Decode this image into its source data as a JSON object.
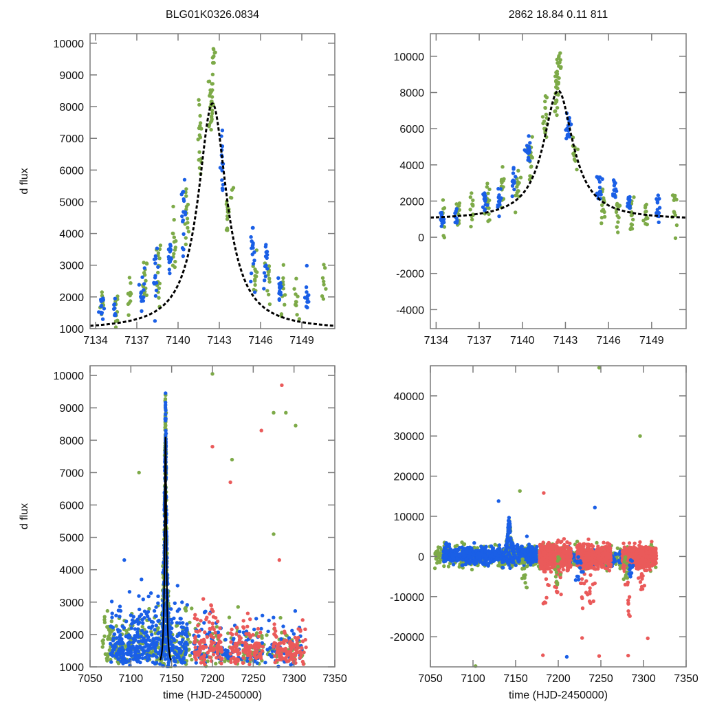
{
  "colors": {
    "ogle_green": "#7daa48",
    "moa_blue": "#1a5fe6",
    "kmt_red": "#ea5a5a",
    "model_line": "#000000",
    "axis": "#7a7a7a"
  },
  "chart_data": [
    {
      "id": "top-left",
      "type": "scatter",
      "title": "BLG01K0326.0834",
      "xlabel": "",
      "ylabel": "d flux",
      "xlim": [
        7133.6,
        7151.4
      ],
      "ylim": [
        1000,
        10300
      ],
      "xticks": [
        7134,
        7137,
        7140,
        7143,
        7146,
        7149
      ],
      "yticks": [
        1000,
        2000,
        3000,
        4000,
        5000,
        6000,
        7000,
        8000,
        9000,
        10000
      ],
      "grid": false,
      "model": {
        "type": "lorentzian-peak",
        "t0": 7142.5,
        "peak": 8100,
        "base": 950,
        "width": 1.25,
        "style": "dashed"
      },
      "series": [
        {
          "name": "green",
          "color_key": "ogle_green",
          "clusters": [
            [
              7134.5,
              1800,
              500,
              12
            ],
            [
              7135.5,
              1700,
              500,
              10
            ],
            [
              7136.5,
              1900,
              700,
              10
            ],
            [
              7137.6,
              2400,
              900,
              14
            ],
            [
              7138.6,
              2800,
              1100,
              16
            ],
            [
              7139.7,
              3600,
              1000,
              14
            ],
            [
              7140.6,
              4400,
              1200,
              14
            ],
            [
              7141.6,
              6800,
              1300,
              16
            ],
            [
              7142.4,
              8200,
              1100,
              30
            ],
            [
              7142.6,
              9600,
              400,
              8
            ],
            [
              7143.6,
              4600,
              800,
              12
            ],
            [
              7144.0,
              5300,
              400,
              4
            ],
            [
              7145.6,
              2800,
              900,
              12
            ],
            [
              7146.6,
              2600,
              800,
              12
            ],
            [
              7147.6,
              2200,
              700,
              12
            ],
            [
              7148.6,
              1900,
              600,
              10
            ],
            [
              7150.6,
              2500,
              1200,
              8
            ]
          ]
        },
        {
          "name": "blue",
          "color_key": "moa_blue",
          "clusters": [
            [
              7134.4,
              1700,
              500,
              14
            ],
            [
              7135.4,
              1600,
              400,
              8
            ],
            [
              7137.4,
              2300,
              700,
              14
            ],
            [
              7138.4,
              2600,
              800,
              14
            ],
            [
              7139.4,
              3300,
              900,
              14
            ],
            [
              7140.4,
              4600,
              1000,
              16
            ],
            [
              7143.2,
              6200,
              900,
              16
            ],
            [
              7145.4,
              3300,
              900,
              16
            ],
            [
              7146.4,
              3000,
              800,
              14
            ],
            [
              7147.4,
              2300,
              700,
              16
            ],
            [
              7149.4,
              2000,
              600,
              12
            ]
          ]
        }
      ]
    },
    {
      "id": "top-right",
      "type": "scatter",
      "title": "2862  18.84  0.11  811",
      "xlabel": "",
      "ylabel": "",
      "xlim": [
        7133.6,
        7151.4
      ],
      "ylim": [
        -5050,
        11250
      ],
      "xticks": [
        7134,
        7137,
        7140,
        7143,
        7146,
        7149
      ],
      "yticks": [
        -4000,
        -2000,
        0,
        2000,
        4000,
        6000,
        8000,
        10000
      ],
      "grid": false,
      "model": {
        "type": "lorentzian-peak",
        "t0": 7142.5,
        "peak": 8100,
        "base": 950,
        "width": 1.25,
        "style": "dashed"
      },
      "series": [
        {
          "name": "green",
          "color_key": "ogle_green",
          "clusters": [
            [
              7134.5,
              900,
              1100,
              16
            ],
            [
              7135.5,
              1100,
              1000,
              12
            ],
            [
              7136.5,
              1400,
              1100,
              12
            ],
            [
              7137.6,
              1800,
              1100,
              16
            ],
            [
              7138.6,
              2300,
              1300,
              16
            ],
            [
              7139.7,
              2900,
              1200,
              16
            ],
            [
              7140.6,
              4300,
              1300,
              16
            ],
            [
              7141.6,
              6800,
              1400,
              18
            ],
            [
              7142.4,
              8200,
              1200,
              30
            ],
            [
              7142.6,
              9800,
              500,
              10
            ],
            [
              7143.6,
              4500,
              900,
              12
            ],
            [
              7145.6,
              1700,
              1100,
              14
            ],
            [
              7146.6,
              1500,
              1100,
              14
            ],
            [
              7147.6,
              1100,
              1100,
              14
            ],
            [
              7148.6,
              900,
              1100,
              12
            ],
            [
              7150.6,
              1400,
              1600,
              12
            ]
          ]
        },
        {
          "name": "blue",
          "color_key": "moa_blue",
          "clusters": [
            [
              7134.4,
              1000,
              800,
              16
            ],
            [
              7135.4,
              1100,
              700,
              10
            ],
            [
              7137.4,
              2000,
              700,
              14
            ],
            [
              7138.4,
              2300,
              800,
              14
            ],
            [
              7139.4,
              3000,
              900,
              14
            ],
            [
              7140.4,
              4700,
              1000,
              16
            ],
            [
              7143.2,
              6200,
              900,
              16
            ],
            [
              7145.4,
              2900,
              800,
              16
            ],
            [
              7146.4,
              2700,
              700,
              14
            ],
            [
              7147.4,
              1900,
              600,
              16
            ],
            [
              7149.4,
              1500,
              700,
              12
            ]
          ]
        }
      ]
    },
    {
      "id": "bottom-left",
      "type": "scatter",
      "title": "",
      "xlabel": "time (HJD-2450000)",
      "ylabel": "d flux",
      "xlim": [
        7050,
        7350
      ],
      "ylim": [
        1000,
        10300
      ],
      "xticks": [
        7050,
        7100,
        7150,
        7200,
        7250,
        7300,
        7350
      ],
      "yticks": [
        1000,
        2000,
        3000,
        4000,
        5000,
        6000,
        7000,
        8000,
        9000,
        10000
      ],
      "grid": false,
      "model": {
        "type": "lorentzian-peak",
        "t0": 7142.5,
        "peak": 8100,
        "base": 950,
        "width": 1.25,
        "style": "solid"
      },
      "series": [
        {
          "name": "green",
          "color_key": "ogle_green",
          "bands": [
            [
              7065,
              7175,
              1600,
              260
            ],
            [
              7175,
              7315,
              1400,
              140
            ]
          ],
          "peak": true
        },
        {
          "name": "blue",
          "color_key": "moa_blue",
          "bands": [
            [
              7075,
              7170,
              1700,
              380
            ],
            [
              7175,
              7310,
              1500,
              160
            ]
          ],
          "peak": true
        },
        {
          "name": "red",
          "color_key": "kmt_red",
          "bands": [
            [
              7178,
              7212,
              1600,
              110
            ],
            [
              7222,
              7262,
              1500,
              110
            ],
            [
              7275,
              7315,
              1400,
              110
            ]
          ]
        }
      ],
      "outliers": [
        [
          7200,
          10050,
          "ogle_green"
        ],
        [
          7260,
          8300,
          "kmt_red"
        ],
        [
          7285,
          9700,
          "kmt_red"
        ],
        [
          7290,
          8850,
          "ogle_green"
        ],
        [
          7302,
          8450,
          "ogle_green"
        ],
        [
          7275,
          8850,
          "ogle_green"
        ],
        [
          7110,
          7000,
          "ogle_green"
        ],
        [
          7200,
          7800,
          "kmt_red"
        ],
        [
          7224,
          7400,
          "ogle_green"
        ],
        [
          7222,
          6700,
          "kmt_red"
        ],
        [
          7275,
          5100,
          "ogle_green"
        ],
        [
          7282,
          4300,
          "kmt_red"
        ],
        [
          7092,
          4300,
          "moa_blue"
        ],
        [
          7113,
          3700,
          "moa_blue"
        ]
      ]
    },
    {
      "id": "bottom-right",
      "type": "scatter",
      "title": "",
      "xlabel": "time (HJD-2450000)",
      "ylabel": "",
      "xlim": [
        7050,
        7350
      ],
      "ylim": [
        -27500,
        47500
      ],
      "xticks": [
        7050,
        7100,
        7150,
        7200,
        7250,
        7300,
        7350
      ],
      "yticks": [
        -20000,
        -10000,
        0,
        10000,
        20000,
        30000,
        40000
      ],
      "grid": false,
      "series": [
        {
          "name": "green",
          "color_key": "ogle_green",
          "bands": [
            [
              7055,
              7315,
              0,
              1300,
              700
            ]
          ]
        },
        {
          "name": "blue",
          "color_key": "moa_blue",
          "bands": [
            [
              7065,
              7175,
              300,
              1100,
              600
            ],
            [
              7205,
              7285,
              0,
              1100,
              160
            ]
          ]
        },
        {
          "name": "red",
          "color_key": "kmt_red",
          "bands": [
            [
              7178,
              7215,
              0,
              1500,
              420
            ],
            [
              7222,
              7262,
              0,
              1500,
              380
            ],
            [
              7275,
              7315,
              0,
              1300,
              420
            ]
          ]
        }
      ],
      "outliers": [
        [
          7248,
          47000,
          "ogle_green"
        ],
        [
          7296,
          30000,
          "ogle_green"
        ],
        [
          7130,
          13800,
          "moa_blue"
        ],
        [
          7243,
          12200,
          "moa_blue"
        ],
        [
          7183,
          15800,
          "kmt_red"
        ],
        [
          7155,
          16300,
          "ogle_green"
        ],
        [
          7103,
          -27300,
          "ogle_green"
        ],
        [
          7210,
          -25000,
          "moa_blue"
        ],
        [
          7182,
          -24600,
          "kmt_red"
        ],
        [
          7248,
          -24800,
          "kmt_red"
        ],
        [
          7282,
          -24700,
          "kmt_red"
        ],
        [
          7305,
          -20400,
          "kmt_red"
        ],
        [
          7228,
          -20300,
          "kmt_red"
        ]
      ],
      "dips": [
        [
          7185,
          -12000,
          "kmt_red"
        ],
        [
          7200,
          -10000,
          "kmt_red"
        ],
        [
          7230,
          -14000,
          "kmt_red"
        ],
        [
          7238,
          -12000,
          "kmt_red"
        ],
        [
          7282,
          -15000,
          "kmt_red"
        ],
        [
          7298,
          -9000,
          "kmt_red"
        ],
        [
          7160,
          -8000,
          "ogle_green"
        ],
        [
          7200,
          -7000,
          "ogle_green"
        ],
        [
          7280,
          -6000,
          "ogle_green"
        ],
        [
          7225,
          -6000,
          "moa_blue"
        ],
        [
          7285,
          -5500,
          "moa_blue"
        ]
      ]
    }
  ]
}
